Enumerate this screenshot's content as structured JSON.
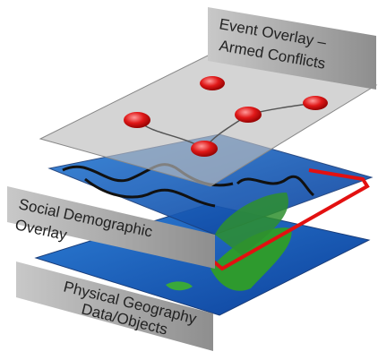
{
  "layers": [
    {
      "lines": [
        "Event Overlay –",
        "Armed Conflicts"
      ]
    },
    {
      "lines": [
        "Social Demographic",
        "Overlay"
      ]
    },
    {
      "lines": [
        "Physical Geography",
        "Data/Objects"
      ]
    }
  ]
}
